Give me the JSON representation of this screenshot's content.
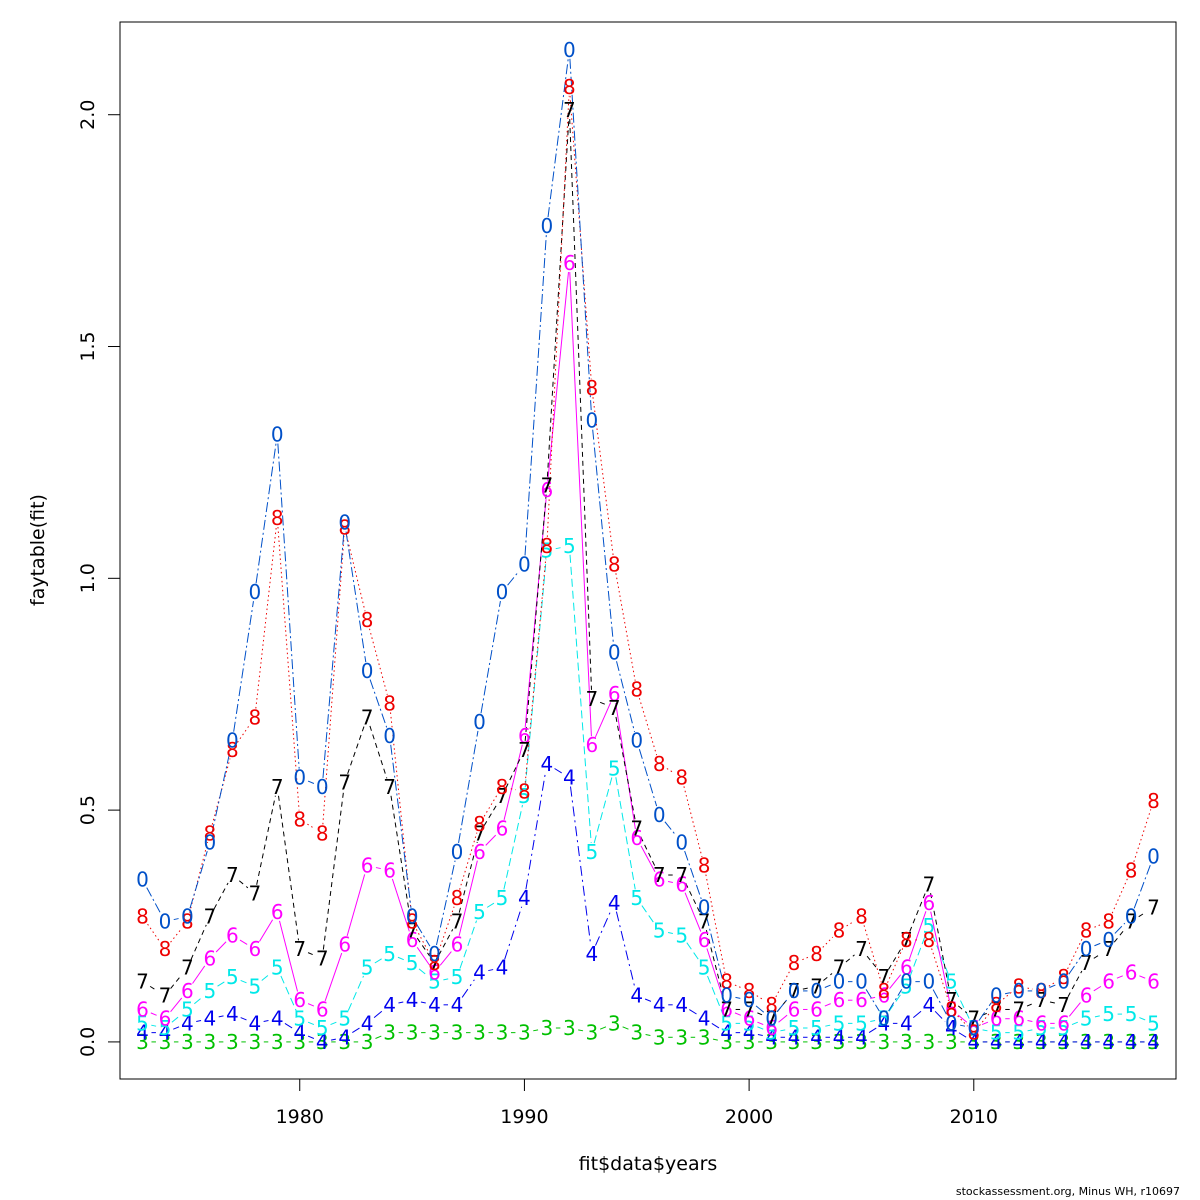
{
  "chart_data": {
    "type": "line",
    "xlabel": "fit$data$years",
    "ylabel": "faytable(fit)",
    "xlim": [
      1972,
      2019
    ],
    "ylim": [
      -0.08,
      2.2
    ],
    "x_ticks": [
      1980,
      1990,
      2000,
      2010
    ],
    "y_ticks": [
      "0.0",
      "0.5",
      "1.0",
      "1.5",
      "2.0"
    ],
    "grid": false,
    "legend": "none",
    "credit": "stockassessment.org, Minus WH, r10697",
    "x": [
      1973,
      1974,
      1975,
      1976,
      1977,
      1978,
      1979,
      1980,
      1981,
      1982,
      1983,
      1984,
      1985,
      1986,
      1987,
      1988,
      1989,
      1990,
      1991,
      1992,
      1993,
      1994,
      1995,
      1996,
      1997,
      1998,
      1999,
      2000,
      2001,
      2002,
      2003,
      2004,
      2005,
      2006,
      2007,
      2008,
      2009,
      2010,
      2011,
      2012,
      2013,
      2014,
      2015,
      2016,
      2017,
      2018
    ],
    "series": [
      {
        "name": "3",
        "color": "#00c000",
        "dash": "none",
        "values": [
          0,
          0,
          0,
          0,
          0,
          0,
          0,
          0,
          0,
          0,
          0,
          0.02,
          0.02,
          0.02,
          0.02,
          0.02,
          0.02,
          0.02,
          0.03,
          0.03,
          0.02,
          0.04,
          0.02,
          0.01,
          0.01,
          0.01,
          0,
          0,
          0,
          0,
          0,
          0,
          0,
          0,
          0,
          0,
          0,
          0,
          0,
          0,
          0,
          0,
          0,
          0,
          0,
          0
        ]
      },
      {
        "name": "4",
        "color": "#0000ee",
        "dash": "10 4 2 4",
        "values": [
          0.02,
          0.02,
          0.04,
          0.05,
          0.06,
          0.04,
          0.05,
          0.02,
          0,
          0.01,
          0.04,
          0.08,
          0.09,
          0.08,
          0.08,
          0.15,
          0.16,
          0.31,
          0.6,
          0.57,
          0.19,
          0.3,
          0.1,
          0.08,
          0.08,
          0.05,
          0.02,
          0.02,
          0.01,
          0.01,
          0.01,
          0.01,
          0.01,
          0.04,
          0.04,
          0.08,
          0.03,
          0,
          0,
          0,
          0,
          0,
          0,
          0,
          0,
          0
        ]
      },
      {
        "name": "5",
        "color": "#00e8e8",
        "dash": "8 4",
        "values": [
          0.04,
          0.03,
          0.07,
          0.11,
          0.14,
          0.12,
          0.16,
          0.05,
          0.03,
          0.05,
          0.16,
          0.19,
          0.17,
          0.13,
          0.14,
          0.28,
          0.31,
          0.53,
          1.06,
          1.07,
          0.41,
          0.59,
          0.31,
          0.24,
          0.23,
          0.16,
          0.04,
          0.04,
          0.02,
          0.03,
          0.03,
          0.04,
          0.04,
          0.05,
          0.12,
          0.25,
          0.13,
          0.03,
          0.02,
          0.02,
          0.03,
          0.03,
          0.05,
          0.06,
          0.06,
          0.04
        ]
      },
      {
        "name": "6",
        "color": "#ff00ff",
        "dash": "none",
        "values": [
          0.07,
          0.05,
          0.11,
          0.18,
          0.23,
          0.2,
          0.28,
          0.09,
          0.07,
          0.21,
          0.38,
          0.37,
          0.22,
          0.15,
          0.21,
          0.41,
          0.46,
          0.66,
          1.19,
          1.68,
          0.64,
          0.75,
          0.44,
          0.35,
          0.34,
          0.22,
          0.07,
          0.05,
          0.03,
          0.07,
          0.07,
          0.09,
          0.09,
          0.1,
          0.16,
          0.3,
          0.07,
          0.03,
          0.05,
          0.05,
          0.04,
          0.04,
          0.1,
          0.13,
          0.15,
          0.13
        ]
      },
      {
        "name": "7",
        "color": "#000000",
        "dash": "5 4",
        "values": [
          0.13,
          0.1,
          0.16,
          0.27,
          0.36,
          0.32,
          0.55,
          0.2,
          0.18,
          0.56,
          0.7,
          0.55,
          0.24,
          0.17,
          0.26,
          0.45,
          0.53,
          0.63,
          1.2,
          2.01,
          0.74,
          0.72,
          0.46,
          0.36,
          0.36,
          0.26,
          0.07,
          0.07,
          0.05,
          0.11,
          0.12,
          0.16,
          0.2,
          0.14,
          0.22,
          0.34,
          0.09,
          0.05,
          0.07,
          0.07,
          0.09,
          0.08,
          0.17,
          0.2,
          0.26,
          0.29
        ]
      },
      {
        "name": "8",
        "color": "#ee0000",
        "dash": "1.5 3",
        "values": [
          0.27,
          0.2,
          0.26,
          0.45,
          0.63,
          0.7,
          1.13,
          0.48,
          0.45,
          1.11,
          0.91,
          0.73,
          0.26,
          0.17,
          0.31,
          0.47,
          0.55,
          0.54,
          1.07,
          2.06,
          1.41,
          1.03,
          0.76,
          0.6,
          0.57,
          0.38,
          0.13,
          0.11,
          0.08,
          0.17,
          0.19,
          0.24,
          0.27,
          0.11,
          0.22,
          0.22,
          0.07,
          0.02,
          0.08,
          0.12,
          0.11,
          0.14,
          0.24,
          0.26,
          0.37,
          0.52
        ]
      },
      {
        "name": "0",
        "color": "#0050c8",
        "dash": "10 3 2 3",
        "values": [
          0.35,
          0.26,
          0.27,
          0.43,
          0.65,
          0.97,
          1.31,
          0.57,
          0.55,
          1.12,
          0.8,
          0.66,
          0.27,
          0.19,
          0.41,
          0.69,
          0.97,
          1.03,
          1.76,
          2.14,
          1.34,
          0.84,
          0.65,
          0.49,
          0.43,
          0.29,
          0.1,
          0.09,
          0.05,
          0.11,
          0.11,
          0.13,
          0.13,
          0.05,
          0.13,
          0.13,
          0.04,
          0.03,
          0.1,
          0.11,
          0.11,
          0.13,
          0.2,
          0.22,
          0.27,
          0.4
        ]
      }
    ]
  }
}
